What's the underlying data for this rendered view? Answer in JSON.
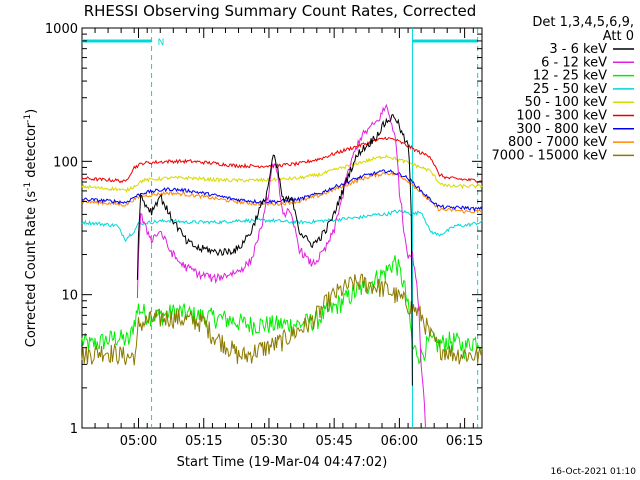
{
  "chart_data": {
    "type": "line",
    "title": "RHESSI Observing Summary Count Rates, Corrected",
    "xlabel": "Start Time (19-Mar-04 04:47:02)",
    "ylabel": "Corrected Count Rate (s⁻¹ detector⁻¹)",
    "ylabel_main": "Corrected Count Rate (s",
    "ylabel_exp1": "-1",
    "ylabel_mid": " detector",
    "ylabel_exp2": "-1",
    "ylabel_end": ")",
    "x_unit": "minutes after 04:47:02",
    "xlim": [
      0,
      92
    ],
    "ylim": [
      1,
      1000
    ],
    "yscale": "log",
    "x_ticks": [
      {
        "t": 13,
        "label": "05:00"
      },
      {
        "t": 28,
        "label": "05:15"
      },
      {
        "t": 43,
        "label": "05:30"
      },
      {
        "t": 58,
        "label": "05:45"
      },
      {
        "t": 73,
        "label": "06:00"
      },
      {
        "t": 88,
        "label": "06:15"
      }
    ],
    "y_ticks": [
      {
        "v": 1,
        "label": "1"
      },
      {
        "v": 10,
        "label": "10"
      },
      {
        "v": 100,
        "label": "100"
      },
      {
        "v": 1000,
        "label": "1000"
      }
    ],
    "legend_header": [
      "Det 1,3,4,5,6,9,",
      "Att 0"
    ],
    "legend_position": "right",
    "night_markers": [
      {
        "t": 16
      },
      {
        "t": 91
      }
    ],
    "saa_marker_t": 76,
    "night_bar_label": "N",
    "series": [
      {
        "name": "3 - 6 keV",
        "color": "#000000",
        "t": [
          0,
          12,
          12.5,
          13.5,
          14.5,
          16,
          18,
          20,
          22,
          24,
          26,
          27,
          29,
          30,
          33,
          36,
          39,
          41,
          42,
          43,
          44,
          45,
          46,
          46.5,
          47.5,
          48.5,
          50,
          52,
          53,
          54,
          56,
          58,
          60,
          62,
          64,
          66,
          68,
          70,
          72,
          73,
          74,
          75,
          75.5,
          76
        ],
        "values": [
          0,
          0,
          0,
          55,
          48,
          42,
          55,
          40,
          32,
          25,
          23,
          22,
          22,
          21,
          21,
          22,
          30,
          45,
          50,
          70,
          110,
          85,
          55,
          50,
          52,
          50,
          30,
          25,
          24,
          25,
          30,
          40,
          60,
          90,
          120,
          135,
          160,
          200,
          220,
          180,
          150,
          130,
          70,
          2
        ]
      },
      {
        "name": "6 - 12 keV",
        "color": "#e020e0",
        "t": [
          0,
          12,
          12.5,
          13.5,
          14.5,
          16,
          18,
          20,
          22,
          24,
          26,
          27,
          29,
          30,
          33,
          36,
          39,
          41,
          42,
          43,
          44,
          45,
          46,
          46.5,
          47.5,
          48.5,
          50,
          52,
          53,
          54,
          56,
          58,
          60,
          62,
          64,
          66,
          68,
          70,
          72,
          73,
          74,
          75,
          76,
          78,
          79
        ],
        "values": [
          0,
          0,
          0,
          40,
          32,
          26,
          30,
          22,
          18,
          16,
          15,
          14,
          14,
          13,
          14,
          15,
          18,
          30,
          40,
          60,
          100,
          75,
          45,
          40,
          42,
          35,
          22,
          18,
          17,
          18,
          22,
          30,
          55,
          100,
          150,
          175,
          200,
          260,
          150,
          60,
          30,
          20,
          20,
          3,
          1
        ]
      },
      {
        "name": "12 - 25 keV",
        "color": "#00ee00",
        "t": [
          0,
          2,
          5,
          8,
          11,
          13,
          15,
          18,
          22,
          26,
          30,
          34,
          38,
          42,
          46,
          50,
          54,
          58,
          62,
          66,
          70,
          72,
          74,
          75.5,
          76,
          78,
          80,
          82,
          84,
          86,
          88,
          90,
          92
        ],
        "values": [
          4.5,
          4.2,
          4.5,
          4.8,
          4.5,
          8,
          7,
          7,
          7.5,
          7,
          6.8,
          6.5,
          6,
          6,
          6,
          6,
          6.5,
          8,
          10,
          12,
          15,
          18,
          12,
          6,
          4,
          3.5,
          4.5,
          4.2,
          4.5,
          4.5,
          4,
          4.5,
          4.5
        ]
      },
      {
        "name": "25 - 50 keV",
        "color": "#00d8d8",
        "t": [
          0,
          4,
          8,
          10,
          11,
          12,
          13,
          16,
          20,
          24,
          28,
          32,
          36,
          40,
          44,
          48,
          52,
          56,
          60,
          64,
          68,
          70,
          72,
          74,
          76,
          78,
          80,
          82,
          84,
          86,
          88,
          90,
          92
        ],
        "values": [
          35,
          34,
          33,
          26,
          28,
          30,
          34,
          35,
          36,
          35,
          35,
          35,
          36,
          36,
          36,
          35,
          35,
          36,
          37,
          38,
          40,
          40,
          42,
          42,
          40,
          42,
          30,
          28,
          30,
          33,
          33,
          34,
          35
        ]
      },
      {
        "name": "50 - 100 keV",
        "color": "#d8d800",
        "t": [
          0,
          4,
          8,
          10,
          12,
          14,
          20,
          25,
          30,
          35,
          40,
          45,
          50,
          55,
          60,
          65,
          70,
          72,
          74,
          76,
          78,
          80,
          82,
          84,
          86,
          88,
          90,
          92
        ],
        "values": [
          65,
          63,
          62,
          60,
          65,
          72,
          75,
          75,
          73,
          72,
          72,
          73,
          75,
          80,
          90,
          100,
          110,
          105,
          100,
          95,
          90,
          85,
          70,
          65,
          65,
          65,
          65,
          65
        ]
      },
      {
        "name": "100 - 300 keV",
        "color": "#ee0000",
        "t": [
          0,
          4,
          8,
          10,
          12,
          14,
          20,
          25,
          30,
          35,
          40,
          45,
          50,
          55,
          60,
          65,
          70,
          72,
          74,
          76,
          78,
          80,
          82,
          84,
          86,
          88,
          90,
          92
        ],
        "values": [
          75,
          73,
          72,
          70,
          90,
          97,
          100,
          100,
          97,
          93,
          92,
          93,
          96,
          105,
          120,
          135,
          150,
          145,
          135,
          125,
          115,
          110,
          80,
          75,
          74,
          73,
          72,
          72
        ]
      },
      {
        "name": "300 - 800 keV",
        "color": "#0000ee",
        "t": [
          0,
          4,
          8,
          10,
          12,
          14,
          20,
          25,
          30,
          35,
          40,
          45,
          50,
          55,
          60,
          65,
          70,
          72,
          74,
          76,
          78,
          80,
          82,
          84,
          86,
          88,
          90,
          92
        ],
        "values": [
          52,
          51,
          50,
          49,
          54,
          58,
          62,
          60,
          56,
          52,
          50,
          50,
          52,
          58,
          68,
          78,
          85,
          82,
          78,
          70,
          60,
          52,
          46,
          45,
          45,
          45,
          44,
          44
        ]
      },
      {
        "name": "800 - 7000 keV",
        "color": "#ff8800",
        "t": [
          0,
          4,
          8,
          10,
          12,
          14,
          20,
          25,
          30,
          35,
          40,
          45,
          50,
          55,
          60,
          65,
          70,
          72,
          74,
          76,
          78,
          80,
          82,
          84,
          86,
          88,
          90,
          92
        ],
        "values": [
          50,
          49,
          48,
          47,
          52,
          55,
          58,
          56,
          53,
          50,
          48,
          48,
          50,
          56,
          65,
          75,
          82,
          80,
          75,
          67,
          58,
          50,
          44,
          43,
          43,
          42,
          42,
          42
        ]
      },
      {
        "name": "7000 - 15000 keV",
        "color": "#8b7a00",
        "t": [
          0,
          2,
          5,
          8,
          11,
          12.5,
          13,
          16,
          20,
          24,
          28,
          30,
          32,
          34,
          36,
          38,
          40,
          42,
          44,
          46,
          48,
          50,
          52,
          54,
          56,
          58,
          60,
          62,
          64,
          66,
          68,
          70,
          72,
          74,
          76,
          78,
          80,
          82,
          84,
          86,
          88,
          90,
          92
        ],
        "values": [
          3.5,
          3.6,
          3.8,
          3.6,
          3.4,
          3.6,
          6,
          6.5,
          6.8,
          6.5,
          6.2,
          5,
          4.5,
          4,
          3.5,
          3.5,
          3.8,
          4,
          4.2,
          4.5,
          5,
          5.5,
          6,
          7,
          8.5,
          10,
          11,
          12,
          12.5,
          12,
          11.5,
          11,
          10,
          9,
          8,
          7,
          5,
          4,
          3.8,
          3.6,
          3.6,
          3.5,
          3.5
        ]
      }
    ]
  },
  "footer_date": "16-Oct-2021 01:10"
}
